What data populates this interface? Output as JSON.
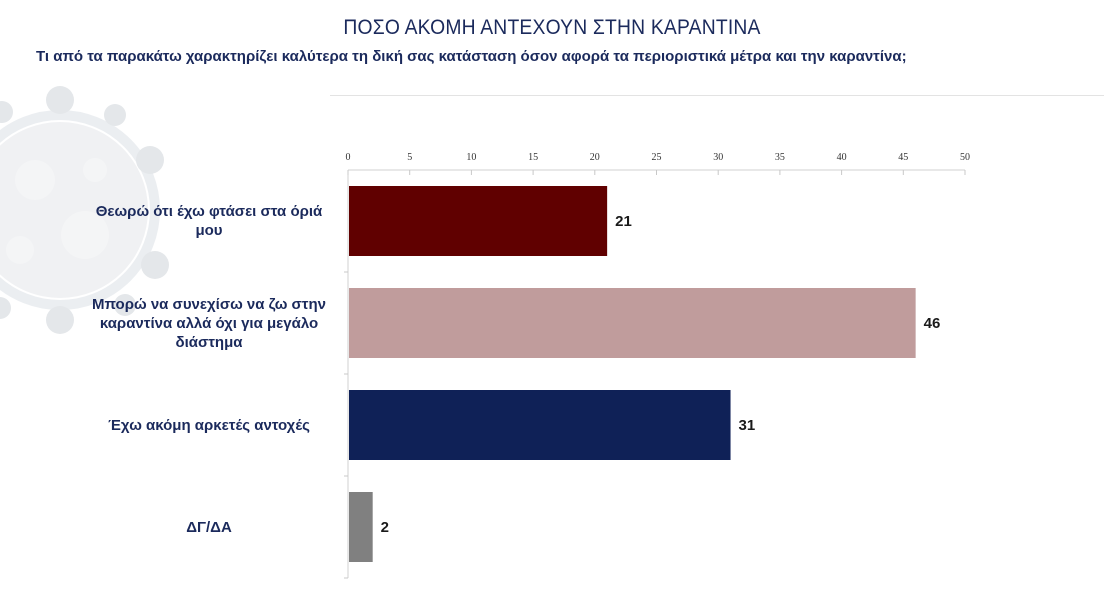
{
  "header": {
    "title": "ΠΟΣΟ ΑΚΟΜΗ ΑΝΤΕΧΟΥΝ ΣΤΗΝ ΚΑΡΑΝΤΙΝΑ",
    "subtitle": "Τι από τα παρακάτω χαρακτηρίζει καλύτερα τη δική σας κατάσταση όσον αφορά τα περιοριστικά μέτρα και την καραντίνα;"
  },
  "chart_data": {
    "type": "bar",
    "orientation": "horizontal",
    "title": "ΠΟΣΟ ΑΚΟΜΗ ΑΝΤΕΧΟΥΝ ΣΤΗΝ ΚΑΡΑΝΤΙΝΑ",
    "categories": [
      "Θεωρώ ότι έχω φτάσει στα όριά μου",
      "Μπορώ να συνεχίσω να ζω στην καραντίνα αλλά όχι για μεγάλο διάστημα",
      "Έχω ακόμη αρκετές αντοχές",
      "ΔΓ/ΔΑ"
    ],
    "values": [
      21,
      46,
      31,
      2
    ],
    "data_labels": [
      "21",
      "46",
      "31",
      "2"
    ],
    "colors": [
      "#600000",
      "#c09c9c",
      "#0f2157",
      "#808080"
    ],
    "xlim": [
      0,
      50
    ],
    "x_ticks": [
      "0",
      "5",
      "10",
      "15",
      "20",
      "25",
      "30",
      "35",
      "40",
      "45",
      "50"
    ],
    "x_axis_position": "top",
    "grid": false,
    "legend": "none"
  }
}
